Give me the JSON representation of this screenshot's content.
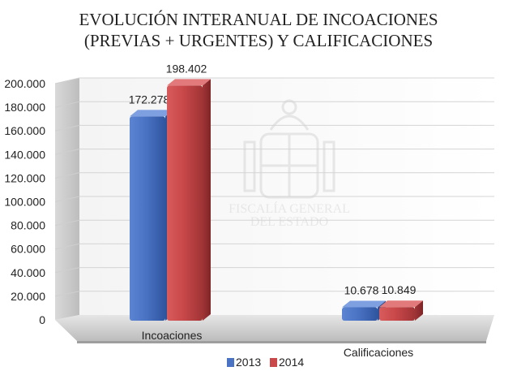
{
  "chart_data": {
    "type": "bar",
    "title_line1": "EVOLUCIÓN INTERANUAL DE INCOACIONES",
    "title_line2": "(PREVIAS + URGENTES) Y CALIFICACIONES",
    "categories": [
      "Incoaciones",
      "Calificaciones"
    ],
    "series": [
      {
        "name": "2013",
        "values": [
          172278,
          10678
        ],
        "labels": [
          "172.278",
          "10.678"
        ],
        "color": "#4a73c4"
      },
      {
        "name": "2014",
        "values": [
          198402,
          10849
        ],
        "labels": [
          "198.402",
          "10.849"
        ],
        "color": "#c9484a"
      }
    ],
    "ylim": [
      0,
      200000
    ],
    "yticks": [
      "0",
      "20.000",
      "40.000",
      "60.000",
      "80.000",
      "100.000",
      "120.000",
      "140.000",
      "160.000",
      "180.000",
      "200.000"
    ],
    "grid": true,
    "legend_position": "bottom",
    "watermark": [
      "FISCALÍA GENERAL",
      "DEL ESTADO"
    ]
  }
}
